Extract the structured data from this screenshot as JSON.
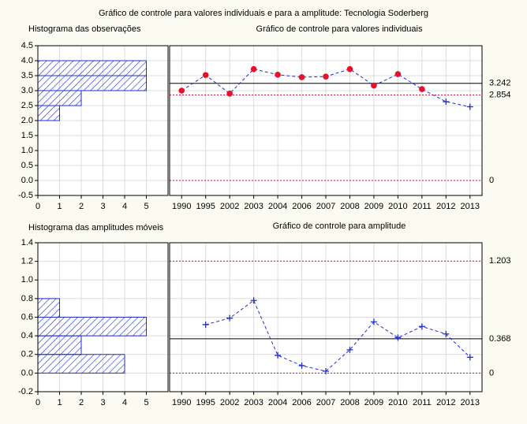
{
  "title": "Gráfico de controle para valores individuais e para a amplitude: Tecnologia Soderberg",
  "chart_data": [
    {
      "type": "histogram",
      "orientation": "horizontal",
      "title": "Histograma das observações",
      "bins": [
        2.0,
        2.5,
        3.0,
        3.5,
        4.0
      ],
      "counts": [
        1,
        2,
        5,
        5
      ],
      "color": "#1f2fd0",
      "xlim": [
        0,
        6
      ],
      "xticks": [
        0,
        1,
        2,
        3,
        4,
        5
      ],
      "ylim": [
        -0.5,
        4.5
      ],
      "yticks": [
        {
          "value": -0.5,
          "label": "-0.5"
        },
        {
          "value": 0,
          "label": "0.0"
        },
        0.5,
        {
          "value": 1,
          "label": "1.0"
        },
        1.5,
        {
          "value": 2,
          "label": "2.0"
        },
        2.5,
        {
          "value": 3,
          "label": "3.0"
        },
        3.5,
        {
          "value": 4,
          "label": "4.0"
        },
        4.5
      ],
      "grid": true
    },
    {
      "type": "line",
      "title": "Gráfico de controle para valores individuais",
      "categories": [
        "1990",
        "1995",
        "2002",
        "2003",
        "2004",
        "2006",
        "2007",
        "2008",
        "2009",
        "2010",
        "2011",
        "2012",
        "2013"
      ],
      "series": [
        {
          "color": "#1f2fd0",
          "values": [
            3.0,
            3.52,
            2.9,
            3.72,
            3.53,
            3.45,
            3.47,
            3.72,
            3.17,
            3.55,
            3.05,
            2.63,
            2.46
          ],
          "markers": [
            "dot",
            "dot",
            "dot",
            "dot",
            "dot",
            "dot",
            "dot",
            "dot",
            "dot",
            "dot",
            "dot",
            "plus",
            "plus"
          ]
        }
      ],
      "marker_colors": {
        "dot": "#e8102a",
        "plus": "#1f2fd0"
      },
      "control_lines": [
        {
          "value": 3.242,
          "color": "#000000",
          "style": "solid"
        },
        {
          "value": 2.854,
          "color": "#e8102a",
          "style": "dotted"
        },
        {
          "value": 0,
          "color": "#e8102a",
          "style": "dotted"
        }
      ],
      "grid": true
    },
    {
      "type": "histogram",
      "orientation": "horizontal",
      "title": "Histograma das amplitudes móveis",
      "bins": [
        0.0,
        0.2,
        0.4,
        0.6,
        0.8
      ],
      "counts": [
        4,
        2,
        5,
        1
      ],
      "color": "#1f2fd0",
      "xlim": [
        0,
        6
      ],
      "xticks": [
        0,
        1,
        2,
        3,
        4,
        5
      ],
      "ylim": [
        -0.2,
        1.4
      ],
      "yticks": [
        -0.2,
        {
          "value": 0,
          "label": "0.0"
        },
        0.2,
        0.4,
        0.6,
        0.8,
        {
          "value": 1,
          "label": "1.0"
        },
        1.2,
        1.4
      ],
      "grid": true
    },
    {
      "type": "line",
      "title": "Gráfico de controle para amplitude",
      "categories": [
        "1990",
        "1995",
        "2002",
        "2003",
        "2004",
        "2006",
        "2007",
        "2008",
        "2009",
        "2010",
        "2011",
        "2012",
        "2013"
      ],
      "series": [
        {
          "color": "#1f2fd0",
          "values": [
            null,
            0.52,
            0.59,
            0.78,
            0.19,
            0.08,
            0.02,
            0.25,
            0.55,
            0.38,
            0.5,
            0.42,
            0.17
          ],
          "markers": [
            "plus",
            "plus",
            "plus",
            "plus",
            "plus",
            "plus",
            "plus",
            "plus",
            "plus",
            "plus",
            "plus",
            "plus",
            "plus"
          ]
        }
      ],
      "marker_colors": {
        "plus": "#1f2fd0"
      },
      "control_lines": [
        {
          "value": 1.203,
          "color": "#e8102a",
          "style": "dotted"
        },
        {
          "value": 0.368,
          "color": "#000000",
          "style": "solid"
        },
        {
          "value": 0,
          "color": "#e8102a",
          "style": "dotted"
        }
      ],
      "grid": true
    }
  ]
}
